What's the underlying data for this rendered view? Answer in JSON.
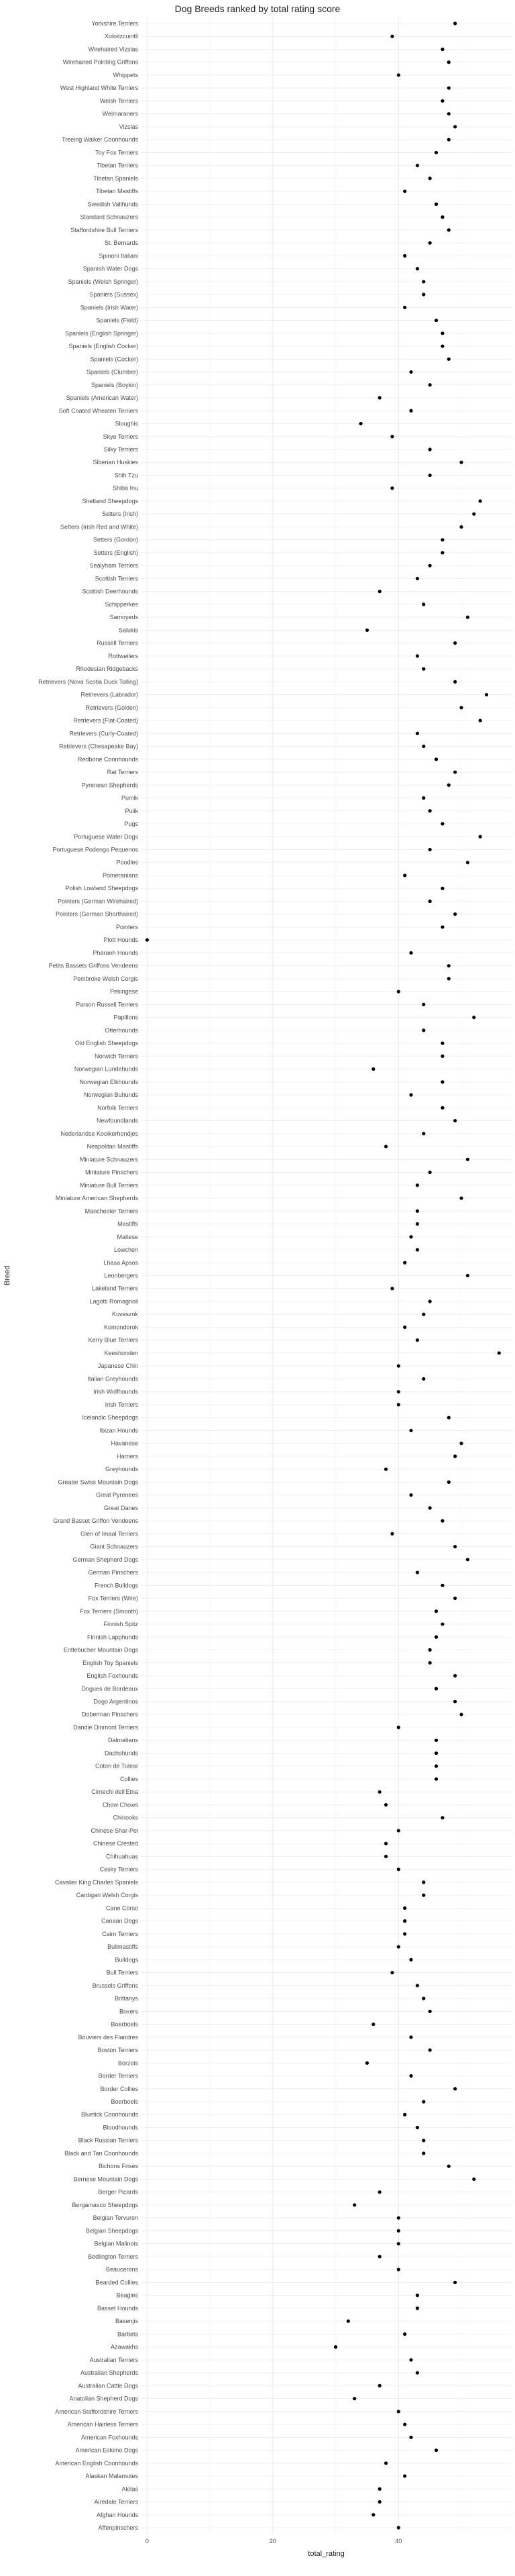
{
  "chart_data": {
    "type": "scatter",
    "title": "Dog Breeds ranked by total rating score",
    "xlabel": "total_rating",
    "ylabel": "Breed",
    "xlim": [
      -1,
      58
    ],
    "x_ticks": [
      0,
      20,
      40
    ],
    "grid": true,
    "point_color": "#000000",
    "points": [
      {
        "breed": "Yorkshire Terriers",
        "value": 49
      },
      {
        "breed": "Xoloitzcuintli",
        "value": 39
      },
      {
        "breed": "Wirehaired Vizslas",
        "value": 47
      },
      {
        "breed": "Wirehaired Pointing Griffons",
        "value": 48
      },
      {
        "breed": "Whippets",
        "value": 40
      },
      {
        "breed": "West Highland White Terriers",
        "value": 48
      },
      {
        "breed": "Welsh Terriers",
        "value": 47
      },
      {
        "breed": "Weimaraners",
        "value": 48
      },
      {
        "breed": "Vizslas",
        "value": 49
      },
      {
        "breed": "Treeing Walker Coonhounds",
        "value": 48
      },
      {
        "breed": "Toy Fox Terriers",
        "value": 46
      },
      {
        "breed": "Tibetan Terriers",
        "value": 43
      },
      {
        "breed": "Tibetan Spaniels",
        "value": 45
      },
      {
        "breed": "Tibetan Mastiffs",
        "value": 41
      },
      {
        "breed": "Swedish Vallhunds",
        "value": 46
      },
      {
        "breed": "Standard Schnauzers",
        "value": 47
      },
      {
        "breed": "Staffordshire Bull Terriers",
        "value": 48
      },
      {
        "breed": "St. Bernards",
        "value": 45
      },
      {
        "breed": "Spinoni Italiani",
        "value": 41
      },
      {
        "breed": "Spanish Water Dogs",
        "value": 43
      },
      {
        "breed": "Spaniels (Welsh Springer)",
        "value": 44
      },
      {
        "breed": "Spaniels (Sussex)",
        "value": 44
      },
      {
        "breed": "Spaniels (Irish Water)",
        "value": 41
      },
      {
        "breed": "Spaniels (Field)",
        "value": 46
      },
      {
        "breed": "Spaniels (English Springer)",
        "value": 47
      },
      {
        "breed": "Spaniels (English Cocker)",
        "value": 47
      },
      {
        "breed": "Spaniels (Cocker)",
        "value": 48
      },
      {
        "breed": "Spaniels (Clumber)",
        "value": 42
      },
      {
        "breed": "Spaniels (Boykin)",
        "value": 45
      },
      {
        "breed": "Spaniels (American Water)",
        "value": 37
      },
      {
        "breed": "Soft Coated Wheaten Terriers",
        "value": 42
      },
      {
        "breed": "Sloughis",
        "value": 34
      },
      {
        "breed": "Skye Terriers",
        "value": 39
      },
      {
        "breed": "Silky Terriers",
        "value": 45
      },
      {
        "breed": "Siberian Huskies",
        "value": 50
      },
      {
        "breed": "Shih Tzu",
        "value": 45
      },
      {
        "breed": "Shiba Inu",
        "value": 39
      },
      {
        "breed": "Shetland Sheepdogs",
        "value": 53
      },
      {
        "breed": "Setters (Irish)",
        "value": 52
      },
      {
        "breed": "Setters (Irish Red and White)",
        "value": 50
      },
      {
        "breed": "Setters (Gordon)",
        "value": 47
      },
      {
        "breed": "Setters (English)",
        "value": 47
      },
      {
        "breed": "Sealyham Terriers",
        "value": 45
      },
      {
        "breed": "Scottish Terriers",
        "value": 43
      },
      {
        "breed": "Scottish Deerhounds",
        "value": 37
      },
      {
        "breed": "Schipperkes",
        "value": 44
      },
      {
        "breed": "Samoyeds",
        "value": 51
      },
      {
        "breed": "Salukis",
        "value": 35
      },
      {
        "breed": "Russell Terriers",
        "value": 49
      },
      {
        "breed": "Rottweilers",
        "value": 43
      },
      {
        "breed": "Rhodesian Ridgebacks",
        "value": 44
      },
      {
        "breed": "Retrievers (Nova Scotia Duck Tolling)",
        "value": 49
      },
      {
        "breed": "Retrievers (Labrador)",
        "value": 54
      },
      {
        "breed": "Retrievers (Golden)",
        "value": 50
      },
      {
        "breed": "Retrievers (Flat-Coated)",
        "value": 53
      },
      {
        "breed": "Retrievers (Curly-Coated)",
        "value": 43
      },
      {
        "breed": "Retrievers (Chesapeake Bay)",
        "value": 44
      },
      {
        "breed": "Redbone Coonhounds",
        "value": 46
      },
      {
        "breed": "Rat Terriers",
        "value": 49
      },
      {
        "breed": "Pyrenean Shepherds",
        "value": 48
      },
      {
        "breed": "Pumik",
        "value": 44
      },
      {
        "breed": "Pulik",
        "value": 45
      },
      {
        "breed": "Pugs",
        "value": 47
      },
      {
        "breed": "Portuguese Water Dogs",
        "value": 53
      },
      {
        "breed": "Portuguese Podengo Pequenos",
        "value": 45
      },
      {
        "breed": "Poodles",
        "value": 51
      },
      {
        "breed": "Pomeranians",
        "value": 41
      },
      {
        "breed": "Polish Lowland Sheepdogs",
        "value": 47
      },
      {
        "breed": "Pointers (German Wirehaired)",
        "value": 45
      },
      {
        "breed": "Pointers (German Shorthaired)",
        "value": 49
      },
      {
        "breed": "Pointers",
        "value": 47
      },
      {
        "breed": "Plott Hounds",
        "value": 0
      },
      {
        "breed": "Pharaoh Hounds",
        "value": 42
      },
      {
        "breed": "Petits Bassets Griffons Vendeens",
        "value": 48
      },
      {
        "breed": "Pembroke Welsh Corgis",
        "value": 48
      },
      {
        "breed": "Pekingese",
        "value": 40
      },
      {
        "breed": "Parson Russell Terriers",
        "value": 44
      },
      {
        "breed": "Papillons",
        "value": 52
      },
      {
        "breed": "Otterhounds",
        "value": 44
      },
      {
        "breed": "Old English Sheepdogs",
        "value": 47
      },
      {
        "breed": "Norwich Terriers",
        "value": 47
      },
      {
        "breed": "Norwegian Lundehunds",
        "value": 36
      },
      {
        "breed": "Norwegian Elkhounds",
        "value": 47
      },
      {
        "breed": "Norwegian Buhunds",
        "value": 42
      },
      {
        "breed": "Norfolk Terriers",
        "value": 47
      },
      {
        "breed": "Newfoundlands",
        "value": 49
      },
      {
        "breed": "Nederlandse Kooikerhondjes",
        "value": 44
      },
      {
        "breed": "Neapolitan Mastiffs",
        "value": 38
      },
      {
        "breed": "Miniature Schnauzers",
        "value": 51
      },
      {
        "breed": "Miniature Pinschers",
        "value": 45
      },
      {
        "breed": "Miniature Bull Terriers",
        "value": 43
      },
      {
        "breed": "Miniature American Shepherds",
        "value": 50
      },
      {
        "breed": "Manchester Terriers",
        "value": 43
      },
      {
        "breed": "Mastiffs",
        "value": 43
      },
      {
        "breed": "Maltese",
        "value": 42
      },
      {
        "breed": "Lowchen",
        "value": 43
      },
      {
        "breed": "Lhasa Apsos",
        "value": 41
      },
      {
        "breed": "Leonbergers",
        "value": 51
      },
      {
        "breed": "Lakeland Terriers",
        "value": 39
      },
      {
        "breed": "Lagotti Romagnoli",
        "value": 45
      },
      {
        "breed": "Kuvaszok",
        "value": 44
      },
      {
        "breed": "Komondorok",
        "value": 41
      },
      {
        "breed": "Kerry Blue Terriers",
        "value": 43
      },
      {
        "breed": "Keeshonden",
        "value": 56
      },
      {
        "breed": "Japanese Chin",
        "value": 40
      },
      {
        "breed": "Italian Greyhounds",
        "value": 44
      },
      {
        "breed": "Irish Wolfhounds",
        "value": 40
      },
      {
        "breed": "Irish Terriers",
        "value": 40
      },
      {
        "breed": "Icelandic Sheepdogs",
        "value": 48
      },
      {
        "breed": "Ibizan Hounds",
        "value": 42
      },
      {
        "breed": "Havanese",
        "value": 50
      },
      {
        "breed": "Harriers",
        "value": 49
      },
      {
        "breed": "Greyhounds",
        "value": 38
      },
      {
        "breed": "Greater Swiss Mountain Dogs",
        "value": 48
      },
      {
        "breed": "Great Pyrenees",
        "value": 42
      },
      {
        "breed": "Great Danes",
        "value": 45
      },
      {
        "breed": "Grand Basset Griffon Vendeens",
        "value": 47
      },
      {
        "breed": "Glen of Imaal Terriers",
        "value": 39
      },
      {
        "breed": "Giant Schnauzers",
        "value": 49
      },
      {
        "breed": "German Shepherd Dogs",
        "value": 51
      },
      {
        "breed": "German Pinschers",
        "value": 43
      },
      {
        "breed": "French Bulldogs",
        "value": 47
      },
      {
        "breed": "Fox Terriers (Wire)",
        "value": 49
      },
      {
        "breed": "Fox Terriers (Smooth)",
        "value": 46
      },
      {
        "breed": "Finnish Spitz",
        "value": 47
      },
      {
        "breed": "Finnish Lapphunds",
        "value": 46
      },
      {
        "breed": "Entlebucher Mountain Dogs",
        "value": 45
      },
      {
        "breed": "English Toy Spaniels",
        "value": 45
      },
      {
        "breed": "English Foxhounds",
        "value": 49
      },
      {
        "breed": "Dogues de Bordeaux",
        "value": 46
      },
      {
        "breed": "Dogo Argentinos",
        "value": 49
      },
      {
        "breed": "Doberman Pinschers",
        "value": 50
      },
      {
        "breed": "Dandie Dinmont Terriers",
        "value": 40
      },
      {
        "breed": "Dalmatians",
        "value": 46
      },
      {
        "breed": "Dachshunds",
        "value": 46
      },
      {
        "breed": "Coton de Tulear",
        "value": 46
      },
      {
        "breed": "Collies",
        "value": 46
      },
      {
        "breed": "Cirnechi dell'Etna",
        "value": 37
      },
      {
        "breed": "Chow Chows",
        "value": 38
      },
      {
        "breed": "Chinooks",
        "value": 47
      },
      {
        "breed": "Chinese Shar-Pei",
        "value": 40
      },
      {
        "breed": "Chinese Crested",
        "value": 38
      },
      {
        "breed": "Chihuahuas",
        "value": 38
      },
      {
        "breed": "Cesky Terriers",
        "value": 40
      },
      {
        "breed": "Cavalier King Charles Spaniels",
        "value": 44
      },
      {
        "breed": "Cardigan Welsh Corgis",
        "value": 44
      },
      {
        "breed": "Cane Corso",
        "value": 41
      },
      {
        "breed": "Canaan Dogs",
        "value": 41
      },
      {
        "breed": "Cairn Terriers",
        "value": 41
      },
      {
        "breed": "Bullmastiffs",
        "value": 40
      },
      {
        "breed": "Bulldogs",
        "value": 42
      },
      {
        "breed": "Bull Terriers",
        "value": 39
      },
      {
        "breed": "Brussels Griffons",
        "value": 43
      },
      {
        "breed": "Brittanys",
        "value": 44
      },
      {
        "breed": "Boxers",
        "value": 45
      },
      {
        "breed": "Boerboels",
        "value": 36
      },
      {
        "breed": "Bouviers des Flandres",
        "value": 42
      },
      {
        "breed": "Boston Terriers",
        "value": 45
      },
      {
        "breed": "Borzois",
        "value": 35
      },
      {
        "breed": "Border Terriers",
        "value": 42
      },
      {
        "breed": "Border Collies",
        "value": 49
      },
      {
        "breed": "Boerboels",
        "value": 44
      },
      {
        "breed": "Bluetick Coonhounds",
        "value": 41
      },
      {
        "breed": "Bloodhounds",
        "value": 43
      },
      {
        "breed": "Black Russian Terriers",
        "value": 44
      },
      {
        "breed": "Black and Tan Coonhounds",
        "value": 44
      },
      {
        "breed": "Bichons Frises",
        "value": 48
      },
      {
        "breed": "Bernese Mountain Dogs",
        "value": 52
      },
      {
        "breed": "Berger Picards",
        "value": 37
      },
      {
        "breed": "Bergamasco Sheepdogs",
        "value": 33
      },
      {
        "breed": "Belgian Tervuren",
        "value": 40
      },
      {
        "breed": "Belgian Sheepdogs",
        "value": 40
      },
      {
        "breed": "Belgian Malinois",
        "value": 40
      },
      {
        "breed": "Bedlington Terriers",
        "value": 37
      },
      {
        "breed": "Beaucerons",
        "value": 40
      },
      {
        "breed": "Bearded Collies",
        "value": 49
      },
      {
        "breed": "Beagles",
        "value": 43
      },
      {
        "breed": "Basset Hounds",
        "value": 43
      },
      {
        "breed": "Basenjis",
        "value": 32
      },
      {
        "breed": "Barbets",
        "value": 41
      },
      {
        "breed": "Azawakhs",
        "value": 30
      },
      {
        "breed": "Australian Terriers",
        "value": 42
      },
      {
        "breed": "Australian Shepherds",
        "value": 43
      },
      {
        "breed": "Australian Cattle Dogs",
        "value": 37
      },
      {
        "breed": "Anatolian Shepherd Dogs",
        "value": 33
      },
      {
        "breed": "American Staffordshire Terriers",
        "value": 40
      },
      {
        "breed": "American Hairless Terriers",
        "value": 41
      },
      {
        "breed": "American Foxhounds",
        "value": 42
      },
      {
        "breed": "American Eskimo Dogs",
        "value": 46
      },
      {
        "breed": "American English Coonhounds",
        "value": 38
      },
      {
        "breed": "Alaskan Malamutes",
        "value": 41
      },
      {
        "breed": "Akitas",
        "value": 37
      },
      {
        "breed": "Airedale Terriers",
        "value": 37
      },
      {
        "breed": "Afghan Hounds",
        "value": 36
      },
      {
        "breed": "Affenpinschers",
        "value": 40
      }
    ]
  }
}
